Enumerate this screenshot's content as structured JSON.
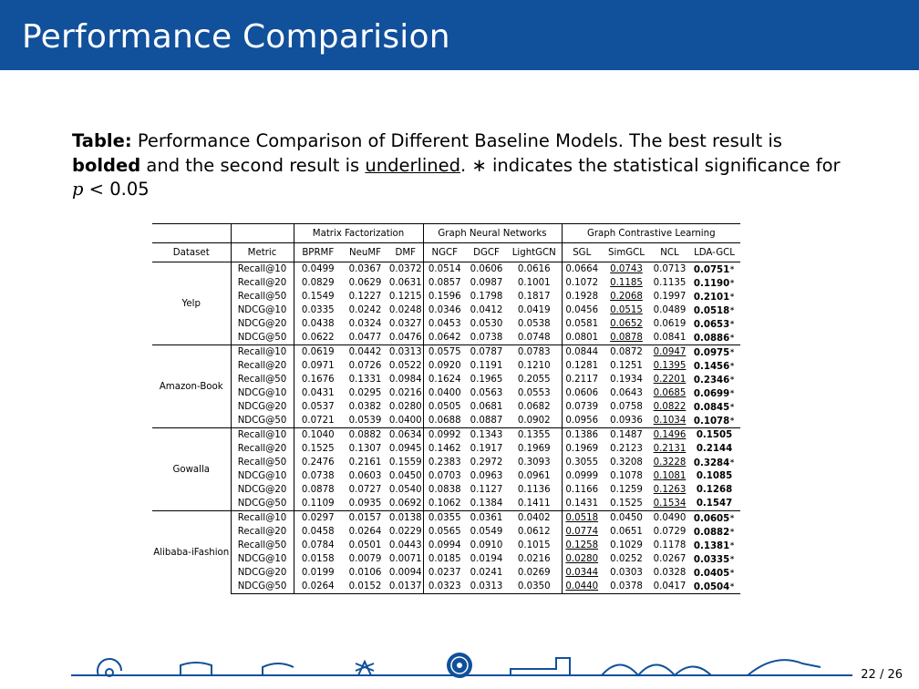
{
  "slide": {
    "title": "Performance Comparision",
    "page": "22 / 26"
  },
  "caption": {
    "label": "Table:",
    "text1": " Performance Comparison of Different Baseline Models. The best result is ",
    "bold_word": "bolded",
    "text2": " and the second result is ",
    "underline_word": "underlined",
    "text3": ". ∗ indicates the statistical significance for ",
    "math_var": "p",
    "math_op": " < ",
    "text4": "0.05"
  },
  "table": {
    "groups": [
      "Matrix Factorization",
      "Graph Neural Networks",
      "Graph Contrastive Learning"
    ],
    "columns": [
      "Dataset",
      "Metric",
      "BPRMF",
      "NeuMF",
      "DMF",
      "NGCF",
      "DGCF",
      "LightGCN",
      "SGL",
      "SimGCL",
      "NCL",
      "LDA-GCL"
    ],
    "metrics": [
      "Recall@10",
      "Recall@20",
      "Recall@50",
      "NDCG@10",
      "NDCG@20",
      "NDCG@50"
    ],
    "datasets": [
      {
        "name": "Yelp",
        "rows": [
          [
            "0.0499",
            "0.0367",
            "0.0372",
            "0.0514",
            "0.0606",
            "0.0616",
            "0.0664",
            "0.0743",
            "0.0713",
            "0.0751"
          ],
          [
            "0.0829",
            "0.0629",
            "0.0631",
            "0.0857",
            "0.0987",
            "0.1001",
            "0.1072",
            "0.1185",
            "0.1135",
            "0.1190"
          ],
          [
            "0.1549",
            "0.1227",
            "0.1215",
            "0.1596",
            "0.1798",
            "0.1817",
            "0.1928",
            "0.2068",
            "0.1997",
            "0.2101"
          ],
          [
            "0.0335",
            "0.0242",
            "0.0248",
            "0.0346",
            "0.0412",
            "0.0419",
            "0.0456",
            "0.0515",
            "0.0489",
            "0.0518"
          ],
          [
            "0.0438",
            "0.0324",
            "0.0327",
            "0.0453",
            "0.0530",
            "0.0538",
            "0.0581",
            "0.0652",
            "0.0619",
            "0.0653"
          ],
          [
            "0.0622",
            "0.0477",
            "0.0476",
            "0.0642",
            "0.0738",
            "0.0748",
            "0.0801",
            "0.0878",
            "0.0841",
            "0.0886"
          ]
        ],
        "second": [
          7,
          7,
          7,
          7,
          7,
          7
        ],
        "star": [
          true,
          true,
          true,
          true,
          true,
          true
        ]
      },
      {
        "name": "Amazon-Book",
        "rows": [
          [
            "0.0619",
            "0.0442",
            "0.0313",
            "0.0575",
            "0.0787",
            "0.0783",
            "0.0844",
            "0.0872",
            "0.0947",
            "0.0975"
          ],
          [
            "0.0971",
            "0.0726",
            "0.0522",
            "0.0920",
            "0.1191",
            "0.1210",
            "0.1281",
            "0.1251",
            "0.1395",
            "0.1456"
          ],
          [
            "0.1676",
            "0.1331",
            "0.0984",
            "0.1624",
            "0.1965",
            "0.2055",
            "0.2117",
            "0.1934",
            "0.2201",
            "0.2346"
          ],
          [
            "0.0431",
            "0.0295",
            "0.0216",
            "0.0400",
            "0.0563",
            "0.0553",
            "0.0606",
            "0.0643",
            "0.0685",
            "0.0699"
          ],
          [
            "0.0537",
            "0.0382",
            "0.0280",
            "0.0505",
            "0.0681",
            "0.0682",
            "0.0739",
            "0.0758",
            "0.0822",
            "0.0845"
          ],
          [
            "0.0721",
            "0.0539",
            "0.0400",
            "0.0688",
            "0.0887",
            "0.0902",
            "0.0956",
            "0.0936",
            "0.1034",
            "0.1078"
          ]
        ],
        "second": [
          8,
          8,
          8,
          8,
          8,
          8
        ],
        "star": [
          true,
          true,
          true,
          true,
          true,
          true
        ]
      },
      {
        "name": "Gowalla",
        "rows": [
          [
            "0.1040",
            "0.0882",
            "0.0634",
            "0.0992",
            "0.1343",
            "0.1355",
            "0.1386",
            "0.1487",
            "0.1496",
            "0.1505"
          ],
          [
            "0.1525",
            "0.1307",
            "0.0945",
            "0.1462",
            "0.1917",
            "0.1969",
            "0.1969",
            "0.2123",
            "0.2131",
            "0.2144"
          ],
          [
            "0.2476",
            "0.2161",
            "0.1559",
            "0.2383",
            "0.2972",
            "0.3093",
            "0.3055",
            "0.3208",
            "0.3228",
            "0.3284"
          ],
          [
            "0.0738",
            "0.0603",
            "0.0450",
            "0.0703",
            "0.0963",
            "0.0961",
            "0.0999",
            "0.1078",
            "0.1081",
            "0.1085"
          ],
          [
            "0.0878",
            "0.0727",
            "0.0540",
            "0.0838",
            "0.1127",
            "0.1136",
            "0.1166",
            "0.1259",
            "0.1263",
            "0.1268"
          ],
          [
            "0.1109",
            "0.0935",
            "0.0692",
            "0.1062",
            "0.1384",
            "0.1411",
            "0.1431",
            "0.1525",
            "0.1534",
            "0.1547"
          ]
        ],
        "second": [
          8,
          8,
          8,
          8,
          8,
          8
        ],
        "star": [
          false,
          false,
          true,
          false,
          false,
          false
        ]
      },
      {
        "name": "Alibaba-iFashion",
        "rows": [
          [
            "0.0297",
            "0.0157",
            "0.0138",
            "0.0355",
            "0.0361",
            "0.0402",
            "0.0518",
            "0.0450",
            "0.0490",
            "0.0605"
          ],
          [
            "0.0458",
            "0.0264",
            "0.0229",
            "0.0565",
            "0.0549",
            "0.0612",
            "0.0774",
            "0.0651",
            "0.0729",
            "0.0882"
          ],
          [
            "0.0784",
            "0.0501",
            "0.0443",
            "0.0994",
            "0.0910",
            "0.1015",
            "0.1258",
            "0.1029",
            "0.1178",
            "0.1381"
          ],
          [
            "0.0158",
            "0.0079",
            "0.0071",
            "0.0185",
            "0.0194",
            "0.0216",
            "0.0280",
            "0.0252",
            "0.0267",
            "0.0335"
          ],
          [
            "0.0199",
            "0.0106",
            "0.0094",
            "0.0237",
            "0.0241",
            "0.0269",
            "0.0344",
            "0.0303",
            "0.0328",
            "0.0405"
          ],
          [
            "0.0264",
            "0.0152",
            "0.0137",
            "0.0323",
            "0.0313",
            "0.0350",
            "0.0440",
            "0.0378",
            "0.0417",
            "0.0504"
          ]
        ],
        "second": [
          6,
          6,
          6,
          6,
          6,
          6
        ],
        "star": [
          true,
          true,
          true,
          true,
          true,
          true
        ]
      }
    ]
  },
  "colors": {
    "title_bar": "#11509b",
    "footer_line": "#11509b"
  }
}
